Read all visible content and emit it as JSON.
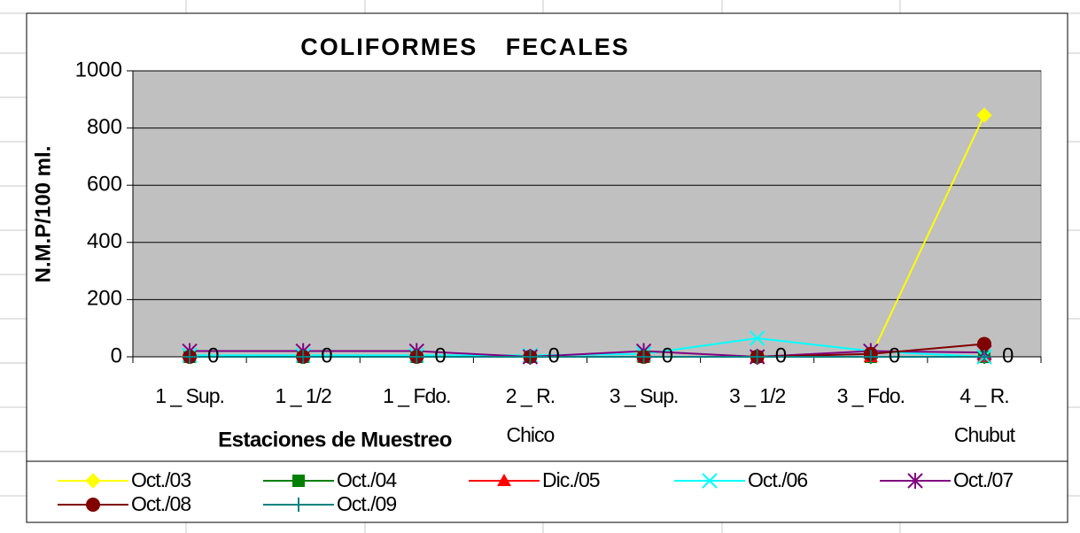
{
  "chart_data": {
    "type": "line",
    "title": "COLIFORMES FECALES",
    "x_label": "Estaciones de Muestreo",
    "y_label": "N.M.P/100 ml.",
    "categories": [
      "1 _ Sup.",
      "1 _ 1/2",
      "1 _ Fdo.",
      "2 _ R. Chico",
      "3 _ Sup.",
      "3 _ 1/2",
      "3 _ Fdo.",
      "4 _ R. Chubut"
    ],
    "ylim": [
      0,
      1000
    ],
    "yticks": [
      0,
      200,
      400,
      600,
      800,
      1000
    ],
    "grid": true,
    "plot_background": "#c0c0c0",
    "legend": "bottom",
    "series": [
      {
        "name": "Oct./03",
        "color": "#ffff00",
        "marker": "diamond",
        "values": [
          0,
          0,
          0,
          0,
          0,
          0,
          0,
          845
        ]
      },
      {
        "name": "Oct./04",
        "color": "#008000",
        "marker": "square",
        "values": [
          0,
          0,
          0,
          0,
          0,
          0,
          0,
          0
        ]
      },
      {
        "name": "Dic./05",
        "color": "#ff0000",
        "marker": "triangle",
        "values": [
          0,
          0,
          0,
          0,
          0,
          0,
          0,
          0
        ]
      },
      {
        "name": "Oct./06",
        "color": "#00ffff",
        "marker": "x",
        "values": [
          5,
          5,
          5,
          5,
          10,
          65,
          20,
          0
        ]
      },
      {
        "name": "Oct./07",
        "color": "#800080",
        "marker": "star",
        "values": [
          20,
          20,
          20,
          0,
          20,
          0,
          20,
          15
        ]
      },
      {
        "name": "Oct./08",
        "color": "#800000",
        "marker": "circle",
        "values": [
          0,
          0,
          0,
          0,
          0,
          0,
          10,
          45
        ]
      },
      {
        "name": "Oct./09",
        "color": "#008080",
        "marker": "plus",
        "values": [
          0,
          0,
          0,
          0,
          0,
          0,
          0,
          0
        ],
        "data_labels": true
      }
    ]
  }
}
